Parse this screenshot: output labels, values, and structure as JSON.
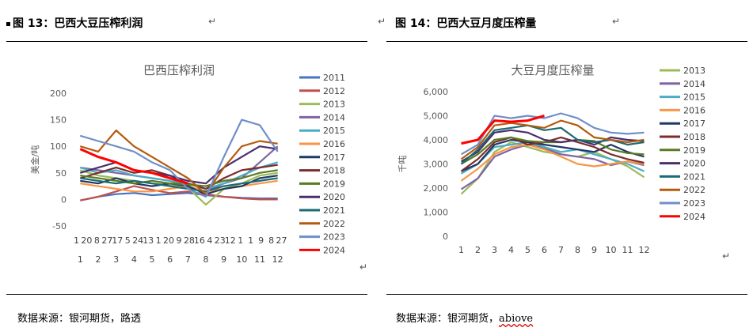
{
  "left": {
    "figure_label": "图 13：巴西大豆压榨利润",
    "source_text": "数据来源：银河期货，路透"
  },
  "right": {
    "figure_label": "图 14：巴西大豆月度压榨量",
    "source_text_prefix": "数据来源：银河期货，",
    "source_text_link": "abiove"
  },
  "return_mark": "↵",
  "colors": {
    "2011": "#4472c4",
    "2012": "#c0504d",
    "2013": "#9bbb59",
    "2014": "#8064a2",
    "2015": "#4bacc6",
    "2016": "#f79646",
    "2017": "#1f3864",
    "2018": "#7b2c2c",
    "2019": "#5a7a24",
    "2020": "#4a2f6b",
    "2021": "#1b6b73",
    "2022": "#b45a0c",
    "2023": "#6f8fc9",
    "2024": "#ff0000"
  },
  "chart_data": [
    {
      "type": "line",
      "title": "巴西压榨利润",
      "ylabel": "美金/吨",
      "ylim": [
        -50,
        200
      ],
      "yticks": [
        "200",
        "150",
        "100",
        "50",
        "0",
        "-50"
      ],
      "x_tick_labels_day": [
        "1",
        "20",
        "8",
        "27",
        "17",
        "5",
        "24",
        "13",
        "1",
        "20",
        "9",
        "28",
        "16",
        "4",
        "23",
        "12",
        "1",
        "1",
        "9",
        "8",
        "27"
      ],
      "x_tick_labels_month": [
        "1",
        "2",
        "3",
        "4",
        "5",
        "6",
        "7",
        "8",
        "9",
        "10",
        "11",
        "12"
      ],
      "series": [
        {
          "name": "2011",
          "values": [
            -2,
            5,
            10,
            12,
            8,
            10,
            12,
            8,
            5,
            3,
            2,
            2
          ]
        },
        {
          "name": "2012",
          "values": [
            -2,
            5,
            15,
            25,
            18,
            12,
            15,
            10,
            5,
            2,
            0,
            0
          ]
        },
        {
          "name": "2013",
          "values": [
            55,
            45,
            40,
            35,
            30,
            28,
            22,
            -10,
            20,
            30,
            45,
            50
          ]
        },
        {
          "name": "2014",
          "values": [
            60,
            55,
            50,
            45,
            40,
            35,
            25,
            15,
            30,
            40,
            70,
            100
          ]
        },
        {
          "name": "2015",
          "values": [
            60,
            50,
            55,
            45,
            40,
            35,
            30,
            20,
            30,
            45,
            60,
            70
          ]
        },
        {
          "name": "2016",
          "values": [
            30,
            25,
            20,
            15,
            15,
            20,
            25,
            15,
            20,
            25,
            30,
            35
          ]
        },
        {
          "name": "2017",
          "values": [
            35,
            30,
            40,
            30,
            25,
            30,
            25,
            10,
            20,
            25,
            40,
            45
          ]
        },
        {
          "name": "2018",
          "values": [
            40,
            50,
            60,
            50,
            55,
            45,
            30,
            20,
            40,
            55,
            60,
            65
          ]
        },
        {
          "name": "2019",
          "values": [
            45,
            40,
            35,
            30,
            35,
            30,
            28,
            25,
            35,
            40,
            50,
            55
          ]
        },
        {
          "name": "2020",
          "values": [
            50,
            60,
            70,
            55,
            50,
            45,
            35,
            30,
            60,
            80,
            100,
            95
          ]
        },
        {
          "name": "2021",
          "values": [
            40,
            35,
            30,
            35,
            30,
            25,
            20,
            15,
            25,
            30,
            35,
            40
          ]
        },
        {
          "name": "2022",
          "values": [
            100,
            90,
            130,
            100,
            80,
            60,
            40,
            10,
            60,
            100,
            110,
            105
          ]
        },
        {
          "name": "2023",
          "values": [
            120,
            110,
            100,
            90,
            70,
            55,
            20,
            5,
            80,
            150,
            140,
            90
          ]
        },
        {
          "name": "2024",
          "values": [
            95,
            80,
            70,
            55,
            50,
            40,
            30,
            null,
            null,
            null,
            null,
            null
          ]
        }
      ]
    },
    {
      "type": "line",
      "title": "大豆月度压榨量",
      "ylabel": "千吨",
      "ylim": [
        0,
        6000
      ],
      "yticks": [
        "6,000",
        "5,000",
        "4,000",
        "3,000",
        "2,000",
        "1,000",
        "0"
      ],
      "categories": [
        "1",
        "2",
        "3",
        "4",
        "5",
        "6",
        "7",
        "8",
        "9",
        "10",
        "11",
        "12"
      ],
      "series": [
        {
          "name": "2013",
          "values": [
            1750,
            2400,
            3500,
            3900,
            3700,
            3500,
            3400,
            3300,
            3500,
            3200,
            2900,
            2450
          ]
        },
        {
          "name": "2014",
          "values": [
            1950,
            2400,
            3300,
            3600,
            3800,
            3650,
            3400,
            3300,
            3200,
            2950,
            3100,
            2950
          ]
        },
        {
          "name": "2015",
          "values": [
            2600,
            3000,
            3700,
            3800,
            3900,
            3700,
            3500,
            3600,
            3400,
            3200,
            3000,
            2700
          ]
        },
        {
          "name": "2016",
          "values": [
            2300,
            2800,
            3400,
            3700,
            3800,
            3600,
            3300,
            3000,
            2900,
            3000,
            3100,
            3000
          ]
        },
        {
          "name": "2017",
          "values": [
            2700,
            3000,
            3800,
            4000,
            3900,
            3800,
            3700,
            3600,
            3500,
            3800,
            3500,
            3300
          ]
        },
        {
          "name": "2018",
          "values": [
            2700,
            3200,
            3900,
            4100,
            3800,
            3900,
            4100,
            3900,
            3700,
            3400,
            3200,
            3050
          ]
        },
        {
          "name": "2019",
          "values": [
            3000,
            3400,
            4000,
            4100,
            3950,
            3900,
            3900,
            4000,
            3950,
            3600,
            3450,
            3400
          ]
        },
        {
          "name": "2020",
          "values": [
            3100,
            3500,
            4300,
            4400,
            4300,
            4000,
            3900,
            4000,
            3800,
            4100,
            4000,
            3950
          ]
        },
        {
          "name": "2021",
          "values": [
            3000,
            3600,
            4400,
            4500,
            4600,
            4400,
            4500,
            4000,
            3900,
            4000,
            3800,
            3900
          ]
        },
        {
          "name": "2022",
          "values": [
            3200,
            3700,
            4600,
            4700,
            4600,
            4500,
            4800,
            4600,
            4100,
            4000,
            3900,
            4000
          ]
        },
        {
          "name": "2023",
          "values": [
            3400,
            3800,
            5000,
            4900,
            5000,
            4900,
            5100,
            4900,
            4500,
            4300,
            4250,
            4300
          ]
        },
        {
          "name": "2024",
          "values": [
            3850,
            4000,
            4800,
            4750,
            4800,
            5000,
            null,
            null,
            null,
            null,
            null,
            null
          ]
        }
      ]
    }
  ]
}
